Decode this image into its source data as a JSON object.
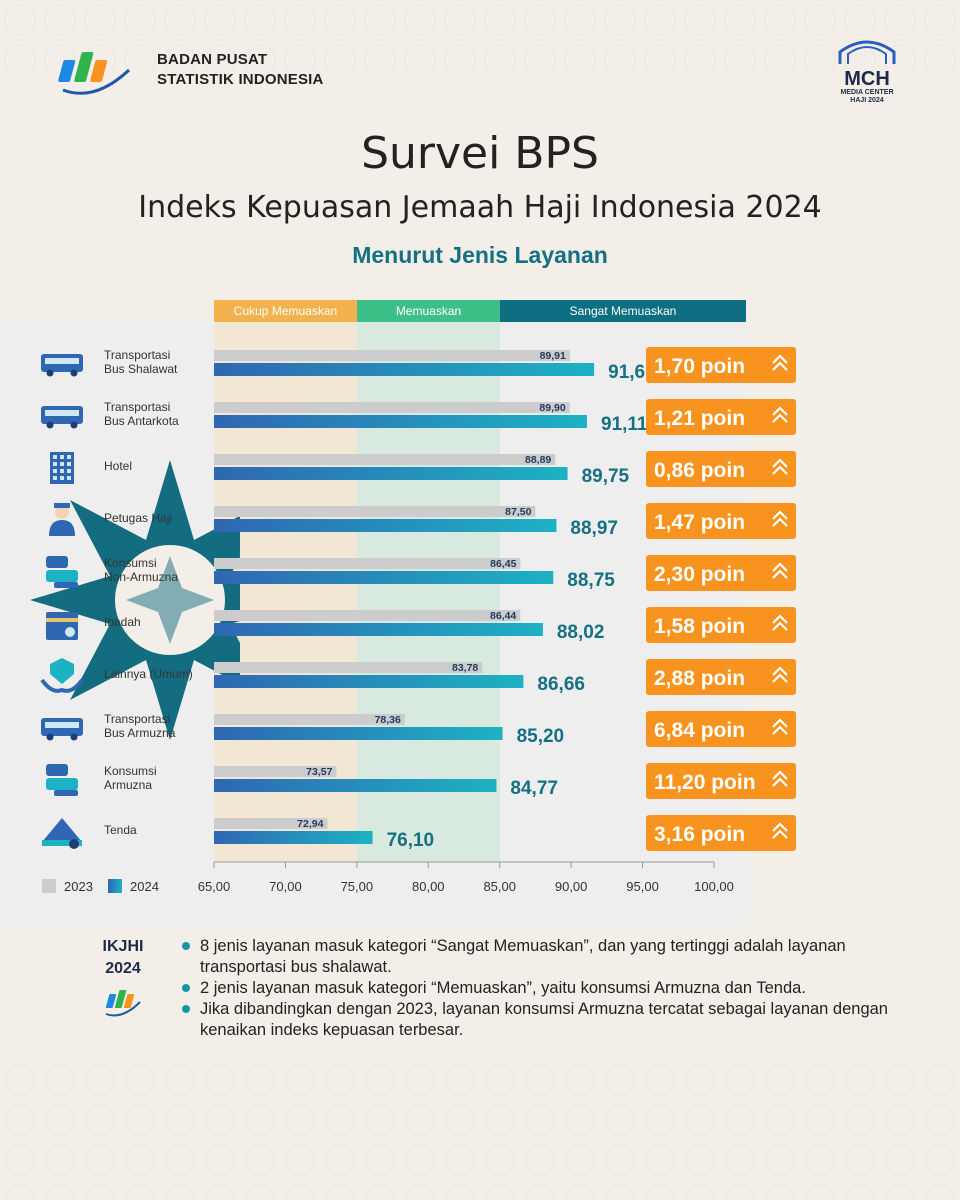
{
  "org": {
    "line1": "BADAN PUSAT",
    "line2": "STATISTIK INDONESIA"
  },
  "mch": {
    "name": "MCH",
    "sub1": "MEDIA CENTER",
    "sub2": "HAJI 2024"
  },
  "title": "Survei BPS",
  "subtitle": "Indeks Kepuasan Jemaah Haji Indonesia 2024",
  "section": "Menurut Jenis Layanan",
  "zones": [
    "Cukup Memuaskan",
    "Memuaskan",
    "Sangat Memuaskan"
  ],
  "colors": {
    "bar2023": "#cccccc",
    "bar2024_start": "#2f67b2",
    "bar2024_end": "#1db2c3",
    "badge": "#f7931e",
    "teal": "#157083",
    "zoneA": "#f2e7d4",
    "zoneB": "#dbe9e0",
    "tabA": "#f2b34f",
    "tabB": "#3dbf88",
    "tabC": "#0f6f82"
  },
  "chart_data": {
    "type": "bar",
    "orientation": "horizontal",
    "categories": [
      "Transportasi Bus Shalawat",
      "Transportasi Bus Antarkota",
      "Hotel",
      "Petugas Haji",
      "Konsumsi Non-Armuzna",
      "Ibadah",
      "Lainnya (Umum)",
      "Transportasi Bus Armuzna",
      "Konsumsi Armuzna",
      "Tenda"
    ],
    "labels": [
      [
        "Transportasi",
        "Bus Shalawat"
      ],
      [
        "Transportasi",
        "Bus Antarkota"
      ],
      [
        "Hotel"
      ],
      [
        "Petugas Haji"
      ],
      [
        "Konsumsi",
        "Non-Armuzna"
      ],
      [
        "Ibadah"
      ],
      [
        "Lainnya (Umum)"
      ],
      [
        "Transportasi",
        "Bus Armuzna"
      ],
      [
        "Konsumsi",
        "Armuzna"
      ],
      [
        "Tenda"
      ]
    ],
    "icons": [
      "bus-icon",
      "bus-icon",
      "hotel-icon",
      "officer-icon",
      "food-icon",
      "worship-icon",
      "service-icon",
      "bus-icon",
      "food-icon",
      "tent-icon"
    ],
    "series": [
      {
        "name": "2023",
        "values": [
          89.91,
          89.9,
          88.89,
          87.5,
          86.45,
          86.44,
          83.78,
          78.36,
          73.57,
          72.94
        ],
        "labels": [
          "89,91",
          "89,90",
          "88,89",
          "87,50",
          "86,45",
          "86,44",
          "83,78",
          "78,36",
          "73,57",
          "72,94"
        ]
      },
      {
        "name": "2024",
        "values": [
          91.61,
          91.11,
          89.75,
          88.97,
          88.75,
          88.02,
          86.66,
          85.2,
          84.77,
          76.1
        ],
        "labels": [
          "91,61",
          "91,11",
          "89,75",
          "88,97",
          "88,75",
          "88,02",
          "86,66",
          "85,20",
          "84,77",
          "76,10"
        ]
      }
    ],
    "changes": [
      "1,70 poin",
      "1,21 poin",
      "0,86 poin",
      "1,47 poin",
      "2,30 poin",
      "1,58 poin",
      "2,88 poin",
      "6,84 poin",
      "11,20 poin",
      "3,16 poin"
    ],
    "xlim": [
      65,
      100
    ],
    "xticks": [
      65,
      70,
      75,
      80,
      85,
      90,
      95,
      100
    ],
    "xtick_labels": [
      "65,00",
      "70,00",
      "75,00",
      "80,00",
      "85,00",
      "90,00",
      "95,00",
      "100,00"
    ],
    "zone_bounds": [
      65,
      75,
      85,
      100
    ],
    "legend": [
      "2023",
      "2024"
    ],
    "legend_position": "bottom-left"
  },
  "notes": {
    "label1": "IKJHI",
    "label2": "2024",
    "items": [
      "8 jenis layanan masuk kategori “Sangat Memuaskan”, dan yang tertinggi adalah layanan transportasi bus shalawat.",
      "2 jenis layanan masuk kategori “Memuaskan”, yaitu konsumsi Armuzna dan Tenda.",
      "Jika dibandingkan dengan 2023, layanan konsumsi Armuzna tercatat sebagai layanan dengan kenaikan indeks kepuasan  terbesar."
    ]
  }
}
